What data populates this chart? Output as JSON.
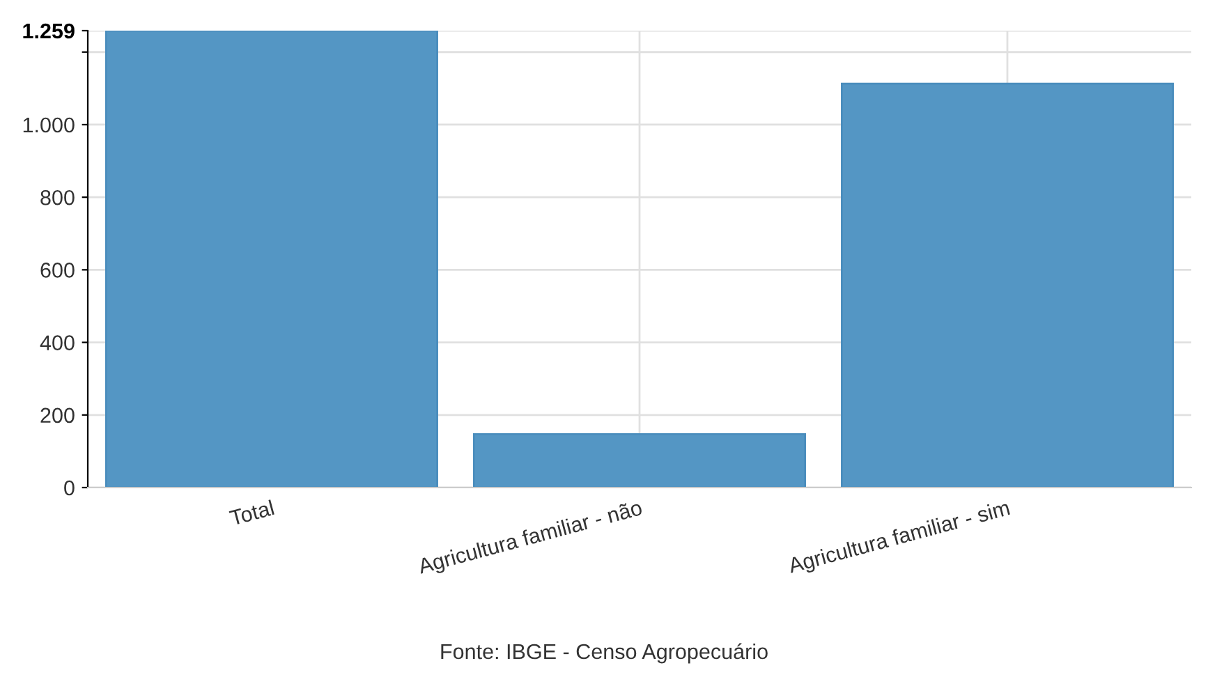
{
  "chart_data": {
    "type": "bar",
    "categories": [
      "Total",
      "Agricultura familiar - não",
      "Agricultura familiar - sim"
    ],
    "values": [
      1259,
      147,
      1113
    ],
    "color": "#5496c4",
    "ylim": [
      0,
      1259
    ],
    "yticks": [
      0,
      200,
      400,
      600,
      800,
      {
        "value": 1000,
        "label": "1.000"
      },
      {
        "value": 1200,
        "label": null
      },
      {
        "value": 1259,
        "label": "1.259"
      }
    ],
    "grid": true,
    "annotations": [
      "Fonte: IBGE - Censo Agropecuário"
    ]
  }
}
